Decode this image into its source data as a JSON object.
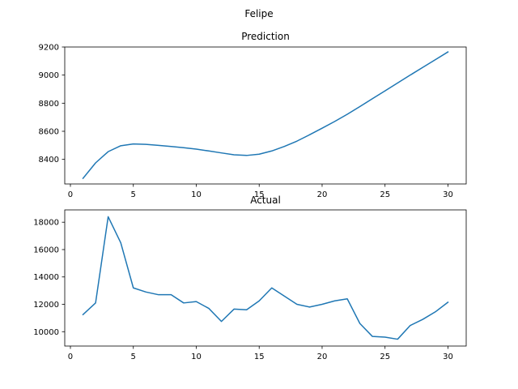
{
  "figure": {
    "suptitle": "Felipe"
  },
  "colors": {
    "series": "#1f77b4",
    "axes": "#000000",
    "background": "#ffffff"
  },
  "chart_data": [
    {
      "type": "line",
      "title": "Prediction",
      "xlabel": "",
      "ylabel": "",
      "grid": false,
      "xlim": [
        -0.45,
        31.45
      ],
      "ylim": [
        8225,
        9200
      ],
      "xticks": [
        0,
        5,
        10,
        15,
        20,
        25,
        30
      ],
      "xtick_labels": [
        "0",
        "5",
        "10",
        "15",
        "20",
        "25",
        "30"
      ],
      "yticks": [
        8400,
        8600,
        8800,
        9000,
        9200
      ],
      "ytick_labels": [
        "8400",
        "8600",
        "8800",
        "9000",
        "9200"
      ],
      "series": [
        {
          "x": [
            1,
            2,
            3,
            4,
            5,
            6,
            7,
            8,
            9,
            10,
            11,
            12,
            13,
            14,
            15,
            16,
            17,
            18,
            19,
            20,
            21,
            22,
            23,
            24,
            25,
            26,
            27,
            28,
            29,
            30
          ],
          "values": [
            8265,
            8375,
            8455,
            8497,
            8510,
            8507,
            8500,
            8492,
            8483,
            8473,
            8460,
            8446,
            8433,
            8428,
            8437,
            8460,
            8492,
            8530,
            8575,
            8622,
            8670,
            8721,
            8776,
            8832,
            8888,
            8944,
            9000,
            9055,
            9110,
            9165
          ]
        }
      ]
    },
    {
      "type": "line",
      "title": "Actual",
      "xlabel": "",
      "ylabel": "",
      "grid": false,
      "xlim": [
        -0.45,
        31.45
      ],
      "ylim": [
        8950,
        18900
      ],
      "xticks": [
        0,
        5,
        10,
        15,
        20,
        25,
        30
      ],
      "xtick_labels": [
        "0",
        "5",
        "10",
        "15",
        "20",
        "25",
        "30"
      ],
      "yticks": [
        10000,
        12000,
        14000,
        16000,
        18000
      ],
      "ytick_labels": [
        "10000",
        "12000",
        "14000",
        "16000",
        "18000"
      ],
      "series": [
        {
          "x": [
            1,
            2,
            3,
            4,
            5,
            6,
            7,
            8,
            9,
            10,
            11,
            12,
            13,
            14,
            15,
            16,
            17,
            18,
            19,
            20,
            21,
            22,
            23,
            24,
            25,
            26,
            27,
            28,
            29,
            30
          ],
          "values": [
            11250,
            12100,
            18400,
            16500,
            13200,
            12900,
            12700,
            12700,
            12100,
            12200,
            11700,
            10750,
            11650,
            11600,
            12250,
            13200,
            12600,
            12000,
            11800,
            12000,
            12250,
            12400,
            10600,
            9650,
            9600,
            9450,
            10450,
            10900,
            11450,
            12150
          ]
        }
      ]
    }
  ]
}
